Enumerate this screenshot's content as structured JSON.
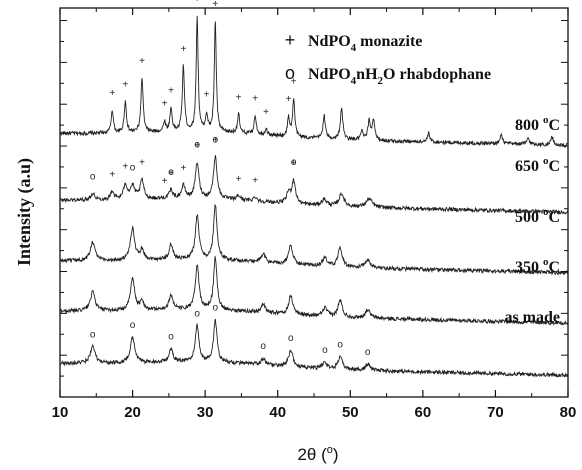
{
  "chart_data": {
    "type": "line",
    "xlabel": "2θ (",
    "xlabel_unit": "o",
    "xlabel_close": ")",
    "ylabel": "Intensity (a.u)",
    "xlim": [
      10,
      80
    ],
    "x_ticks": [
      10,
      20,
      30,
      40,
      50,
      60,
      70,
      80
    ],
    "y_ticks_shown": false,
    "legend_placement": "top-right",
    "legend": [
      {
        "symbol": "+",
        "parts": [
          "NdPO",
          "4",
          " monazite"
        ]
      },
      {
        "symbol": "o",
        "parts": [
          "NdPO",
          "4",
          "nH",
          "2",
          "O rhabdophane"
        ]
      }
    ],
    "series": [
      {
        "label": "800 °C",
        "label_parts": [
          "800 ",
          "o",
          "C"
        ],
        "baseline": 6.3,
        "peaks": [
          {
            "x": 17.2,
            "h": 0.55,
            "w": 0.18
          },
          {
            "x": 19.0,
            "h": 0.75,
            "w": 0.18
          },
          {
            "x": 21.3,
            "h": 1.3,
            "w": 0.18
          },
          {
            "x": 24.4,
            "h": 0.25,
            "w": 0.18
          },
          {
            "x": 25.3,
            "h": 0.55,
            "w": 0.18
          },
          {
            "x": 27.0,
            "h": 1.55,
            "w": 0.18
          },
          {
            "x": 28.9,
            "h": 2.75,
            "w": 0.16
          },
          {
            "x": 30.2,
            "h": 0.4,
            "w": 0.18
          },
          {
            "x": 31.4,
            "h": 2.65,
            "w": 0.16
          },
          {
            "x": 34.6,
            "h": 0.45,
            "w": 0.18
          },
          {
            "x": 36.9,
            "h": 0.45,
            "w": 0.18
          },
          {
            "x": 38.4,
            "h": 0.15,
            "w": 0.18
          },
          {
            "x": 41.5,
            "h": 0.45,
            "w": 0.18
          },
          {
            "x": 42.2,
            "h": 0.9,
            "w": 0.18
          },
          {
            "x": 46.4,
            "h": 0.55,
            "w": 0.2
          },
          {
            "x": 48.8,
            "h": 0.75,
            "w": 0.2
          },
          {
            "x": 51.6,
            "h": 0.2,
            "w": 0.2
          },
          {
            "x": 52.6,
            "h": 0.45,
            "w": 0.2
          },
          {
            "x": 53.2,
            "h": 0.5,
            "w": 0.2
          },
          {
            "x": 60.8,
            "h": 0.2,
            "w": 0.2
          },
          {
            "x": 70.8,
            "h": 0.2,
            "w": 0.2
          },
          {
            "x": 74.5,
            "h": 0.15,
            "w": 0.2
          },
          {
            "x": 77.8,
            "h": 0.2,
            "w": 0.2
          }
        ]
      },
      {
        "label": "650 °C",
        "label_parts": [
          "650 ",
          "o",
          "C"
        ],
        "baseline": 4.7,
        "peaks": [
          {
            "x": 14.5,
            "h": 0.15,
            "w": 0.4
          },
          {
            "x": 17.2,
            "h": 0.2,
            "w": 0.3
          },
          {
            "x": 19.0,
            "h": 0.35,
            "w": 0.3
          },
          {
            "x": 20.0,
            "h": 0.3,
            "w": 0.4
          },
          {
            "x": 21.3,
            "h": 0.45,
            "w": 0.3
          },
          {
            "x": 25.3,
            "h": 0.2,
            "w": 0.3
          },
          {
            "x": 27.0,
            "h": 0.3,
            "w": 0.3
          },
          {
            "x": 28.9,
            "h": 0.85,
            "w": 0.3
          },
          {
            "x": 31.4,
            "h": 1.0,
            "w": 0.3
          },
          {
            "x": 34.6,
            "h": 0.1,
            "w": 0.3
          },
          {
            "x": 36.9,
            "h": 0.1,
            "w": 0.3
          },
          {
            "x": 41.5,
            "h": 0.25,
            "w": 0.3
          },
          {
            "x": 42.2,
            "h": 0.55,
            "w": 0.3
          },
          {
            "x": 46.4,
            "h": 0.15,
            "w": 0.4
          },
          {
            "x": 48.8,
            "h": 0.3,
            "w": 0.4
          },
          {
            "x": 52.6,
            "h": 0.2,
            "w": 0.5
          }
        ]
      },
      {
        "label": "500 °C",
        "label_parts": [
          "500 ",
          "o",
          "C"
        ],
        "baseline": 3.25,
        "peaks": [
          {
            "x": 14.5,
            "h": 0.45,
            "w": 0.4
          },
          {
            "x": 20.0,
            "h": 0.75,
            "w": 0.35
          },
          {
            "x": 21.3,
            "h": 0.25,
            "w": 0.3
          },
          {
            "x": 25.3,
            "h": 0.35,
            "w": 0.3
          },
          {
            "x": 28.9,
            "h": 1.05,
            "w": 0.3
          },
          {
            "x": 31.4,
            "h": 1.3,
            "w": 0.28
          },
          {
            "x": 38.0,
            "h": 0.2,
            "w": 0.35
          },
          {
            "x": 41.8,
            "h": 0.45,
            "w": 0.35
          },
          {
            "x": 46.5,
            "h": 0.2,
            "w": 0.4
          },
          {
            "x": 48.6,
            "h": 0.45,
            "w": 0.35
          },
          {
            "x": 52.4,
            "h": 0.2,
            "w": 0.4
          }
        ]
      },
      {
        "label": "350 °C",
        "label_parts": [
          "350 ",
          "o",
          "C"
        ],
        "baseline": 2.05,
        "peaks": [
          {
            "x": 14.5,
            "h": 0.45,
            "w": 0.4
          },
          {
            "x": 20.0,
            "h": 0.75,
            "w": 0.35
          },
          {
            "x": 21.3,
            "h": 0.2,
            "w": 0.3
          },
          {
            "x": 25.3,
            "h": 0.35,
            "w": 0.3
          },
          {
            "x": 28.9,
            "h": 1.05,
            "w": 0.3
          },
          {
            "x": 31.4,
            "h": 1.25,
            "w": 0.28
          },
          {
            "x": 38.0,
            "h": 0.2,
            "w": 0.35
          },
          {
            "x": 41.8,
            "h": 0.45,
            "w": 0.35
          },
          {
            "x": 46.5,
            "h": 0.2,
            "w": 0.4
          },
          {
            "x": 48.6,
            "h": 0.4,
            "w": 0.35
          },
          {
            "x": 52.4,
            "h": 0.2,
            "w": 0.4
          }
        ]
      },
      {
        "label": "as made",
        "label_parts": [
          "as made",
          "",
          ""
        ],
        "baseline": 0.8,
        "peaks": [
          {
            "x": 14.5,
            "h": 0.4,
            "w": 0.4
          },
          {
            "x": 20.0,
            "h": 0.6,
            "w": 0.35
          },
          {
            "x": 25.3,
            "h": 0.3,
            "w": 0.3
          },
          {
            "x": 28.9,
            "h": 0.85,
            "w": 0.3
          },
          {
            "x": 31.4,
            "h": 1.0,
            "w": 0.28
          },
          {
            "x": 38.0,
            "h": 0.15,
            "w": 0.35
          },
          {
            "x": 41.8,
            "h": 0.4,
            "w": 0.35
          },
          {
            "x": 46.5,
            "h": 0.15,
            "w": 0.4
          },
          {
            "x": 48.6,
            "h": 0.3,
            "w": 0.35
          },
          {
            "x": 52.4,
            "h": 0.15,
            "w": 0.4
          }
        ]
      }
    ],
    "markers": [
      {
        "symbol": "+",
        "series": 0,
        "x": [
          17.2,
          19.0,
          21.3,
          24.4,
          25.3,
          27.0,
          28.9,
          30.2,
          31.4,
          34.6,
          36.9,
          38.4,
          41.5,
          42.2
        ]
      },
      {
        "symbol": "+",
        "series": 1,
        "x": [
          17.2,
          19.0,
          21.3,
          24.4,
          25.3,
          27.0,
          28.9,
          31.4,
          34.6,
          36.9,
          42.2
        ]
      },
      {
        "symbol": "o",
        "series": 1,
        "x": [
          14.5,
          20.0,
          25.3,
          28.9,
          31.4,
          42.2
        ]
      },
      {
        "symbol": "o",
        "series": 4,
        "x": [
          14.5,
          20.0,
          25.3,
          28.9,
          31.4,
          38.0,
          41.8,
          46.5,
          48.6,
          52.4
        ]
      }
    ]
  }
}
